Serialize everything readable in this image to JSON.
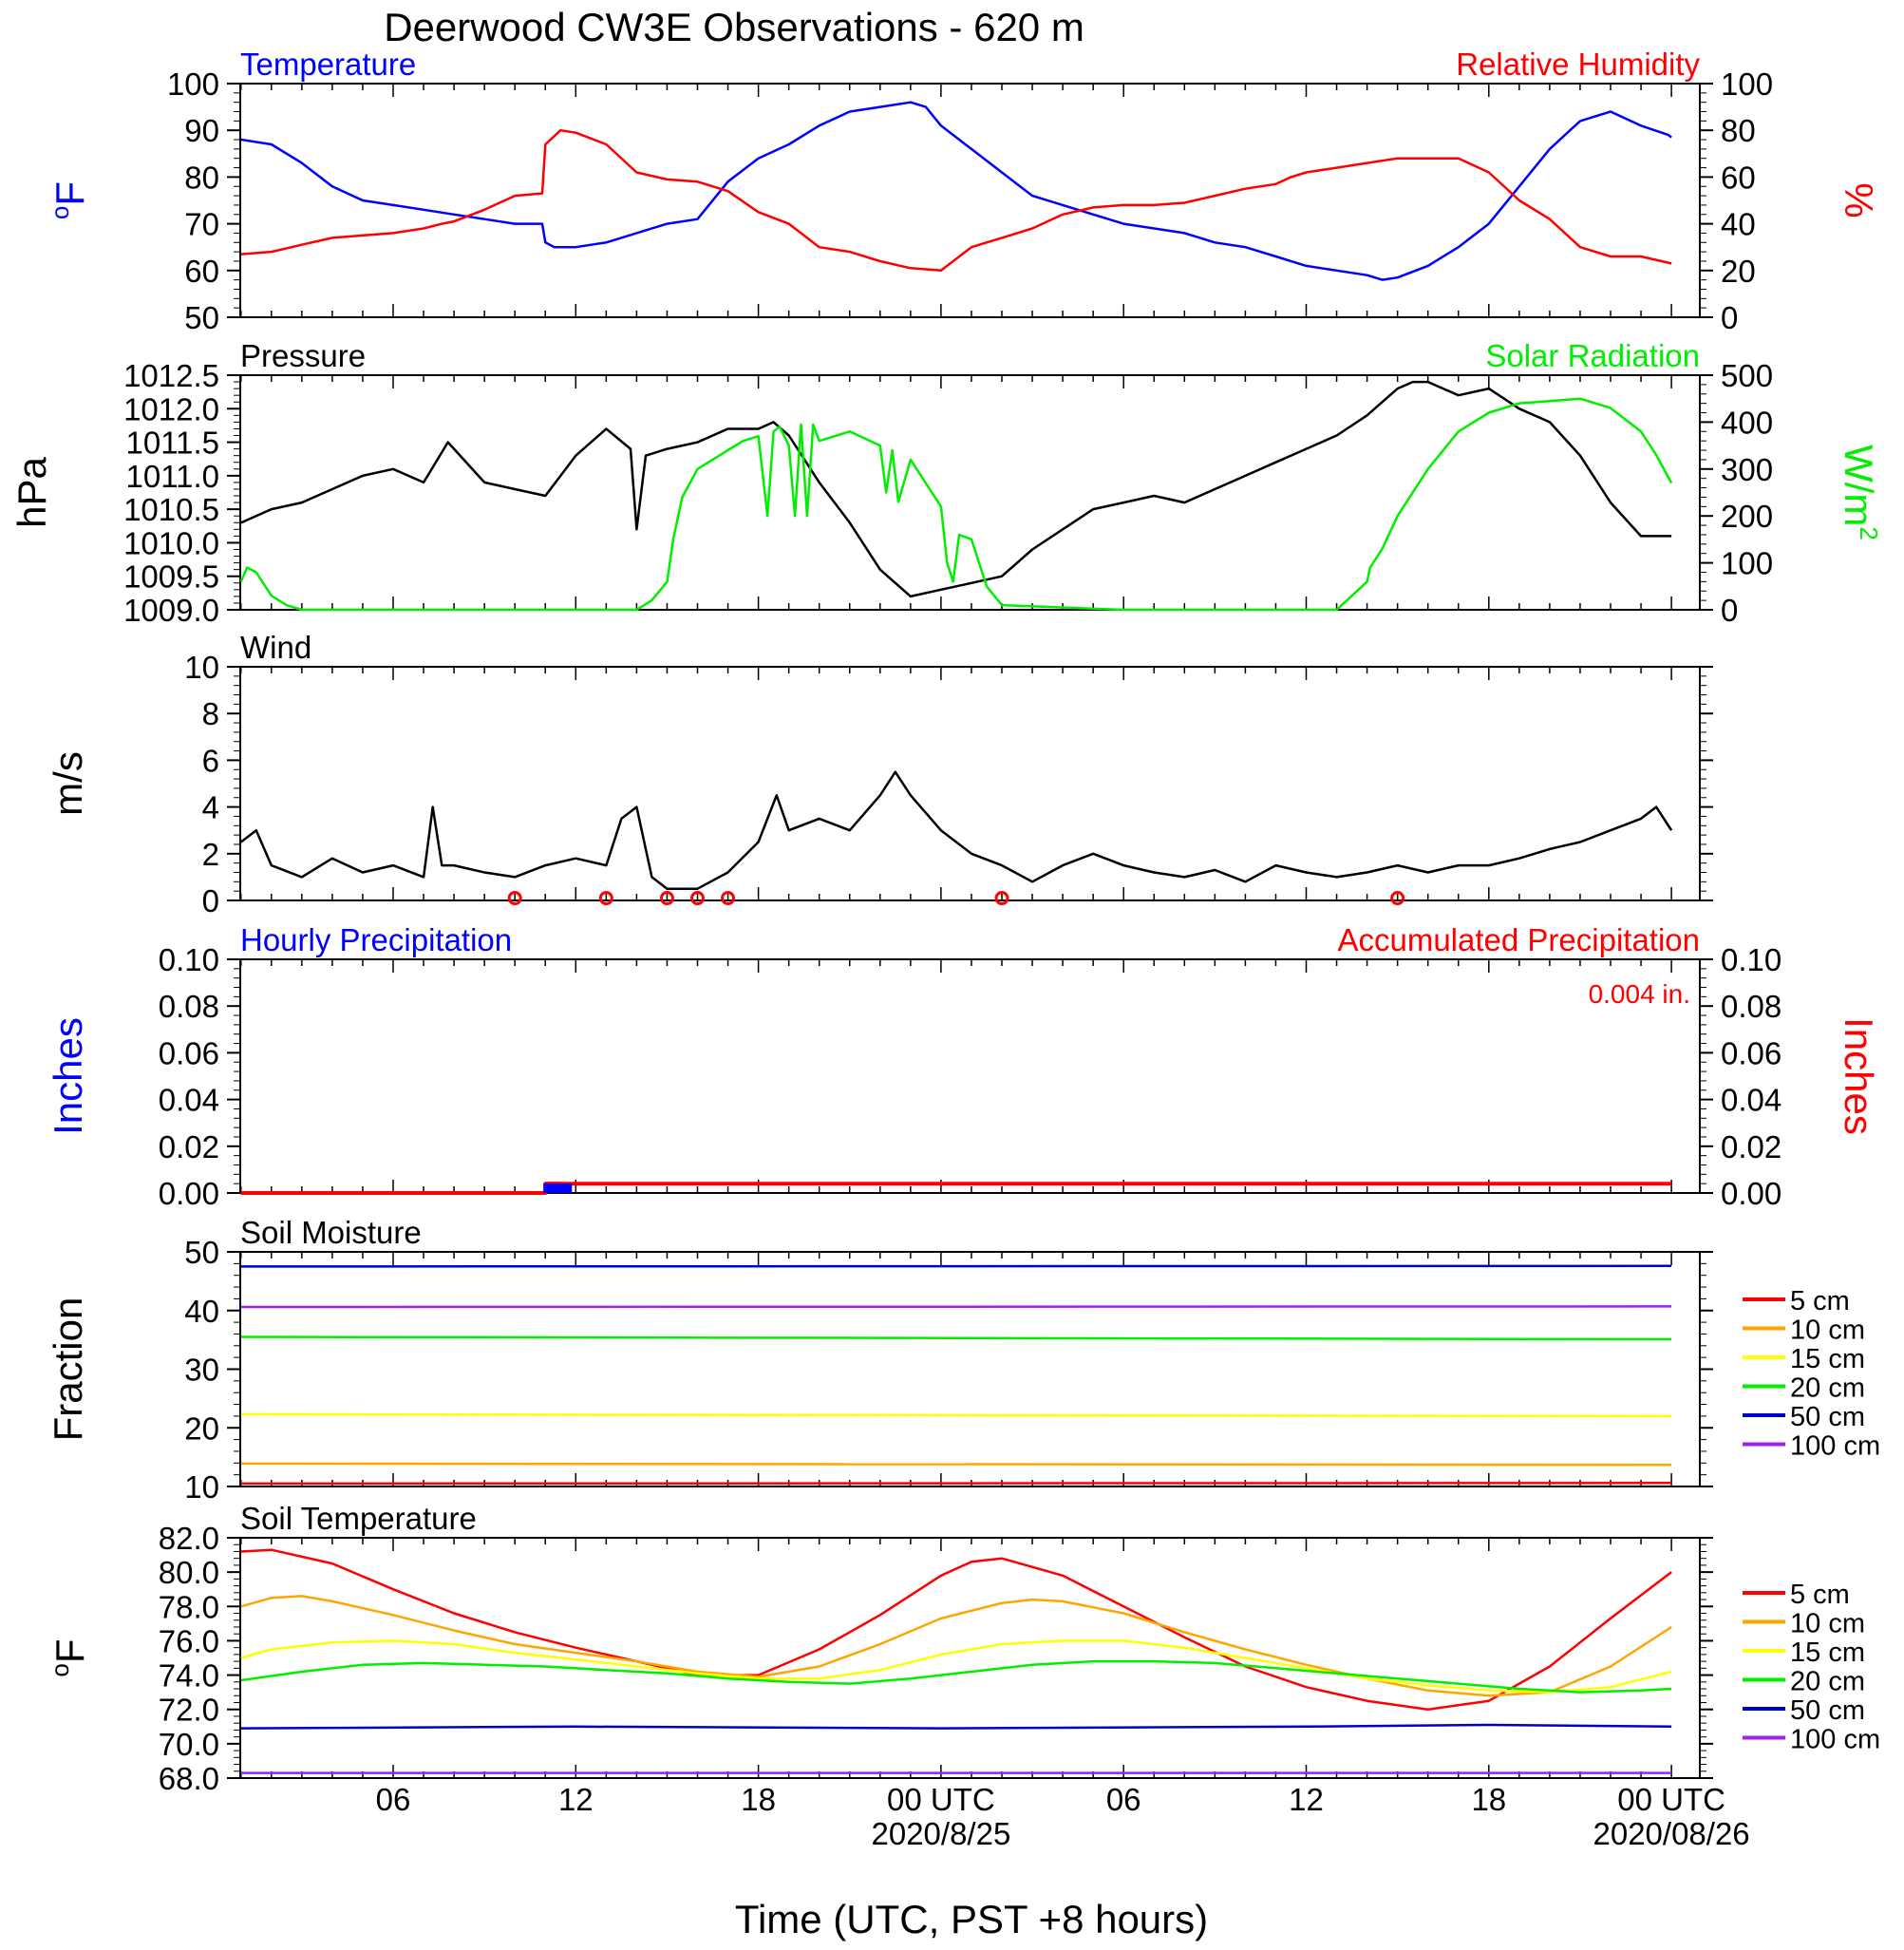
{
  "title": "Deerwood CW3E Observations - 620 m",
  "x_axis": {
    "label": "Time (UTC, PST +8 hours)",
    "ticks": [
      "06",
      "12",
      "18",
      "00 UTC",
      "06",
      "12",
      "18",
      "00 UTC"
    ],
    "date_labels": [
      "2020/8/25",
      "2020/08/26"
    ],
    "range_hours": [
      1,
      48
    ]
  },
  "colors": {
    "blue": "#0000ff",
    "red": "#ff0000",
    "green": "#00ee00",
    "black": "#000000"
  },
  "chart_data": [
    {
      "type": "line",
      "panel": "temperature-humidity",
      "left_title": "Temperature",
      "right_title": "Relative Humidity",
      "left_ylabel": "oF",
      "right_ylabel": "%",
      "left_ylim": [
        50,
        100
      ],
      "left_ticks": [
        "100",
        "90",
        "80",
        "70",
        "60",
        "50"
      ],
      "right_ylim": [
        0,
        100
      ],
      "right_ticks": [
        "100",
        "80",
        "60",
        "40",
        "20",
        "0"
      ],
      "series": [
        {
          "name": "Temperature",
          "axis": "left",
          "color": "#0000ff",
          "x": [
            1,
            2,
            3,
            4,
            5,
            6,
            7,
            8,
            9,
            10,
            10.9,
            11,
            11.3,
            12,
            13,
            14,
            15,
            16,
            17,
            18,
            19,
            20,
            21,
            22,
            23,
            23.5,
            24,
            25,
            26,
            27,
            28,
            29,
            30,
            31,
            32,
            33,
            34,
            35,
            36,
            37,
            38,
            38.5,
            39,
            40,
            41,
            42,
            43,
            44,
            45,
            46,
            47,
            47.9,
            48
          ],
          "y": [
            88,
            87,
            83,
            78,
            75,
            74,
            73,
            72,
            71,
            70,
            70,
            66,
            65,
            65,
            66,
            68,
            70,
            71,
            79,
            84,
            87,
            91,
            94,
            95,
            96,
            95,
            91,
            86,
            81,
            76,
            74,
            72,
            70,
            69,
            68,
            66,
            65,
            63,
            61,
            60,
            59,
            58,
            58.5,
            61,
            65,
            70,
            78,
            86,
            92,
            94,
            91,
            89,
            88.5
          ]
        },
        {
          "name": "Relative Humidity",
          "axis": "right",
          "color": "#ff0000",
          "x": [
            1,
            2,
            3,
            4,
            5,
            6,
            7,
            7.6,
            8,
            9,
            10,
            10.9,
            11,
            11.5,
            12,
            13,
            14,
            15,
            16,
            17,
            18,
            19,
            20,
            21,
            22,
            23,
            24,
            25,
            26,
            27,
            28,
            29,
            30,
            31,
            32,
            33,
            34,
            35,
            35.5,
            36,
            37,
            38,
            39,
            40,
            41,
            42,
            43,
            44,
            45,
            46,
            47,
            48
          ],
          "y": [
            27,
            28,
            31,
            34,
            35,
            36,
            38,
            40,
            41,
            46,
            52,
            53,
            74,
            80,
            79,
            74,
            62,
            59,
            58,
            54,
            45,
            40,
            30,
            28,
            24,
            21,
            20,
            30,
            34,
            38,
            44,
            47,
            48,
            48,
            49,
            52,
            55,
            57,
            60,
            62,
            64,
            66,
            68,
            68,
            68,
            62,
            50,
            42,
            30,
            26,
            26,
            23
          ]
        }
      ]
    },
    {
      "type": "line",
      "panel": "pressure-solar",
      "left_title": "Pressure",
      "right_title": "Solar Radiation",
      "left_ylabel": "hPa",
      "right_ylabel": "W/m2",
      "left_ylim": [
        1009.0,
        1012.5
      ],
      "left_ticks": [
        "1012.5",
        "1012.0",
        "1011.5",
        "1011.0",
        "1010.5",
        "1010.0",
        "1009.5",
        "1009.0"
      ],
      "right_ylim": [
        0,
        500
      ],
      "right_ticks": [
        "500",
        "400",
        "300",
        "200",
        "100",
        "0"
      ],
      "series": [
        {
          "name": "Pressure",
          "axis": "left",
          "color": "#000000",
          "x": [
            1,
            2,
            3,
            4,
            5,
            6,
            7,
            7.8,
            8,
            9,
            10,
            11,
            11.5,
            12,
            13,
            13.8,
            14,
            14.3,
            15,
            16,
            17,
            17.5,
            18,
            18.5,
            19,
            20,
            21,
            22,
            23,
            24,
            25,
            26,
            27,
            28,
            29,
            30,
            31,
            32,
            33,
            34,
            35,
            36,
            37,
            38,
            39,
            39.5,
            40,
            41,
            42,
            43,
            44,
            45,
            46,
            47,
            48
          ],
          "y": [
            1010.3,
            1010.5,
            1010.6,
            1010.8,
            1011.0,
            1011.1,
            1010.9,
            1011.5,
            1011.4,
            1010.9,
            1010.8,
            1010.7,
            1011.0,
            1011.3,
            1011.7,
            1011.4,
            1010.2,
            1011.3,
            1011.4,
            1011.5,
            1011.7,
            1011.7,
            1011.7,
            1011.8,
            1011.6,
            1010.9,
            1010.3,
            1009.6,
            1009.2,
            1009.3,
            1009.4,
            1009.5,
            1009.9,
            1010.2,
            1010.5,
            1010.6,
            1010.7,
            1010.6,
            1010.8,
            1011.0,
            1011.2,
            1011.4,
            1011.6,
            1011.9,
            1012.3,
            1012.4,
            1012.4,
            1012.2,
            1012.3,
            1012.0,
            1011.8,
            1011.3,
            1010.6,
            1010.1,
            1010.1
          ]
        },
        {
          "name": "Solar Radiation",
          "axis": "right",
          "color": "#00ee00",
          "x": [
            1,
            1.2,
            1.5,
            2,
            2.5,
            3,
            10,
            14,
            14.5,
            15,
            15.2,
            15.5,
            16,
            17,
            17.5,
            18,
            18.3,
            18.5,
            18.7,
            19,
            19.2,
            19.4,
            19.6,
            19.8,
            20,
            21,
            22,
            22.2,
            22.4,
            22.6,
            23,
            24,
            24.2,
            24.4,
            24.6,
            25,
            25.5,
            26,
            30,
            37,
            38,
            38.1,
            38.5,
            39,
            40,
            41,
            42,
            43,
            44,
            45,
            46,
            47,
            47.5,
            48
          ],
          "y": [
            60,
            90,
            80,
            30,
            10,
            0,
            0,
            0,
            20,
            60,
            150,
            240,
            300,
            340,
            360,
            370,
            200,
            380,
            390,
            350,
            200,
            395,
            200,
            395,
            360,
            380,
            350,
            250,
            340,
            230,
            320,
            220,
            100,
            60,
            160,
            150,
            50,
            10,
            0,
            0,
            60,
            90,
            130,
            200,
            300,
            380,
            420,
            440,
            445,
            450,
            430,
            380,
            330,
            270
          ]
        }
      ]
    },
    {
      "type": "line",
      "panel": "wind",
      "left_title": "Wind",
      "left_ylabel": "m/s",
      "left_ylim": [
        0,
        10
      ],
      "left_ticks": [
        "10",
        "8",
        "6",
        "4",
        "2",
        "0"
      ],
      "series": [
        {
          "name": "Wind",
          "axis": "left",
          "color": "#000000",
          "x": [
            1,
            1.5,
            2,
            3,
            4,
            5,
            6,
            7,
            7.3,
            7.6,
            8,
            9,
            10,
            11,
            12,
            13,
            13.5,
            14,
            14.5,
            15,
            16,
            17,
            18,
            18.6,
            19,
            20,
            21,
            22,
            22.5,
            23,
            24,
            25,
            26,
            27,
            28,
            29,
            30,
            31,
            32,
            33,
            34,
            35,
            36,
            37,
            38,
            39,
            40,
            41,
            42,
            43,
            44,
            45,
            46,
            47,
            47.5,
            48
          ],
          "y": [
            2.5,
            3.0,
            1.5,
            1.0,
            1.8,
            1.2,
            1.5,
            1.0,
            4.0,
            1.5,
            1.5,
            1.2,
            1.0,
            1.5,
            1.8,
            1.5,
            3.5,
            4.0,
            1.0,
            0.5,
            0.5,
            1.2,
            2.5,
            4.5,
            3.0,
            3.5,
            3.0,
            4.5,
            5.5,
            4.5,
            3.0,
            2.0,
            1.5,
            0.8,
            1.5,
            2.0,
            1.5,
            1.2,
            1.0,
            1.3,
            0.8,
            1.5,
            1.2,
            1.0,
            1.2,
            1.5,
            1.2,
            1.5,
            1.5,
            1.8,
            2.2,
            2.5,
            3.0,
            3.5,
            4.0,
            3.0
          ]
        }
      ],
      "calm_markers_hours": [
        10,
        13,
        15,
        16,
        17,
        26,
        39
      ]
    },
    {
      "type": "line",
      "panel": "precipitation",
      "left_title": "Hourly Precipitation",
      "right_title": "Accumulated Precipitation",
      "annotation": "0.004 in.",
      "left_ylabel": "Inches",
      "right_ylabel": "Inches",
      "left_ylim": [
        0,
        0.1
      ],
      "left_ticks": [
        "0.10",
        "0.08",
        "0.06",
        "0.04",
        "0.02",
        "0.00"
      ],
      "right_ylim": [
        0,
        0.1
      ],
      "right_ticks": [
        "0.10",
        "0.08",
        "0.06",
        "0.04",
        "0.02",
        "0.00"
      ],
      "series": [
        {
          "name": "Hourly Precipitation",
          "axis": "left",
          "color": "#0000ff",
          "x": [
            11,
            11.5
          ],
          "y": [
            0.004,
            0.004
          ]
        },
        {
          "name": "Accumulated Precipitation",
          "axis": "right",
          "color": "#ff0000",
          "x": [
            1,
            11,
            11,
            48
          ],
          "y": [
            0,
            0,
            0.004,
            0.004
          ]
        }
      ]
    },
    {
      "type": "line",
      "panel": "soil-moisture",
      "left_title": "Soil Moisture",
      "left_ylabel": "Fraction",
      "left_ylim": [
        10,
        50
      ],
      "left_ticks": [
        "50",
        "40",
        "30",
        "20",
        "10"
      ],
      "legend": [
        "5 cm",
        "10 cm",
        "15 cm",
        "20 cm",
        "50 cm",
        "100 cm"
      ],
      "series": [
        {
          "name": "5 cm",
          "color": "#ff0000",
          "x": [
            1,
            48
          ],
          "y": [
            10.5,
            10.6
          ]
        },
        {
          "name": "10 cm",
          "color": "#ffa500",
          "x": [
            1,
            48
          ],
          "y": [
            13.9,
            13.7
          ]
        },
        {
          "name": "15 cm",
          "color": "#ffff00",
          "x": [
            1,
            48
          ],
          "y": [
            22.3,
            22.0
          ]
        },
        {
          "name": "20 cm",
          "color": "#00ee00",
          "x": [
            1,
            48
          ],
          "y": [
            35.5,
            35.1
          ]
        },
        {
          "name": "50 cm",
          "color": "#0000cc",
          "x": [
            1,
            48
          ],
          "y": [
            47.5,
            47.6
          ]
        },
        {
          "name": "100 cm",
          "color": "#a020f0",
          "x": [
            1,
            48
          ],
          "y": [
            40.6,
            40.7
          ]
        }
      ]
    },
    {
      "type": "line",
      "panel": "soil-temperature",
      "left_title": "Soil Temperature",
      "left_ylabel": "oF",
      "left_ylim": [
        68,
        82
      ],
      "left_ticks": [
        "82.0",
        "80.0",
        "78.0",
        "76.0",
        "74.0",
        "72.0",
        "70.0",
        "68.0"
      ],
      "legend": [
        "5 cm",
        "10 cm",
        "15 cm",
        "20 cm",
        "50 cm",
        "100 cm"
      ],
      "series": [
        {
          "name": "5 cm",
          "color": "#ff0000",
          "x": [
            1,
            2,
            4,
            6,
            8,
            10,
            12,
            14,
            16,
            18,
            20,
            22,
            24,
            25,
            26,
            28,
            30,
            32,
            34,
            36,
            38,
            40,
            42,
            44,
            46,
            48
          ],
          "y": [
            81.2,
            81.3,
            80.5,
            79.0,
            77.6,
            76.5,
            75.6,
            74.8,
            74.0,
            74.0,
            75.5,
            77.5,
            79.8,
            80.6,
            80.8,
            79.8,
            78.0,
            76.2,
            74.5,
            73.3,
            72.5,
            72.0,
            72.5,
            74.5,
            77.3,
            80.0
          ]
        },
        {
          "name": "10 cm",
          "color": "#ffa500",
          "x": [
            1,
            2,
            3,
            4,
            6,
            8,
            10,
            12,
            14,
            16,
            18,
            20,
            22,
            24,
            26,
            27,
            28,
            30,
            32,
            34,
            36,
            38,
            40,
            42,
            44,
            46,
            48
          ],
          "y": [
            78.0,
            78.5,
            78.6,
            78.3,
            77.5,
            76.6,
            75.8,
            75.3,
            74.8,
            74.2,
            73.9,
            74.5,
            75.8,
            77.3,
            78.2,
            78.4,
            78.3,
            77.6,
            76.5,
            75.5,
            74.6,
            73.8,
            73.1,
            72.8,
            73.0,
            74.5,
            76.8
          ]
        },
        {
          "name": "15 cm",
          "color": "#ffff00",
          "x": [
            1,
            2,
            4,
            6,
            8,
            10,
            12,
            14,
            16,
            18,
            20,
            22,
            24,
            26,
            28,
            30,
            32,
            34,
            36,
            38,
            40,
            42,
            44,
            46,
            48
          ],
          "y": [
            75.0,
            75.5,
            75.9,
            76.0,
            75.8,
            75.3,
            74.9,
            74.5,
            74.1,
            73.8,
            73.8,
            74.3,
            75.2,
            75.8,
            76.0,
            76.0,
            75.6,
            75.0,
            74.4,
            73.8,
            73.4,
            73.1,
            73.0,
            73.3,
            74.2
          ]
        },
        {
          "name": "20 cm",
          "color": "#00ee00",
          "x": [
            1,
            3,
            5,
            7,
            9,
            11,
            13,
            15,
            17,
            19,
            21,
            23,
            25,
            27,
            29,
            31,
            33,
            35,
            37,
            39,
            41,
            43,
            45,
            47,
            48
          ],
          "y": [
            73.7,
            74.2,
            74.6,
            74.7,
            74.6,
            74.5,
            74.3,
            74.1,
            73.8,
            73.6,
            73.5,
            73.8,
            74.2,
            74.6,
            74.8,
            74.8,
            74.7,
            74.4,
            74.1,
            73.8,
            73.5,
            73.2,
            73.0,
            73.1,
            73.2
          ]
        },
        {
          "name": "50 cm",
          "color": "#0000cc",
          "x": [
            1,
            12,
            24,
            36,
            42,
            48
          ],
          "y": [
            70.9,
            71.0,
            70.9,
            71.0,
            71.1,
            71.0
          ]
        },
        {
          "name": "100 cm",
          "color": "#a020f0",
          "x": [
            1,
            24,
            48
          ],
          "y": [
            68.3,
            68.3,
            68.3
          ]
        }
      ]
    }
  ]
}
